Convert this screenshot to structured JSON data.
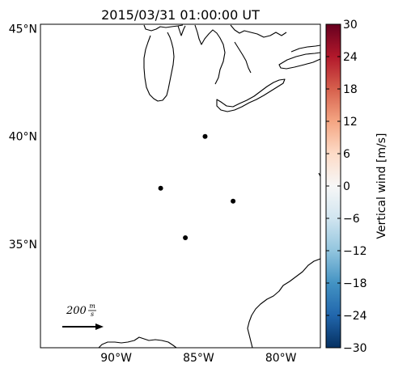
{
  "title": "2015/03/31 01:00:00 UT",
  "map": {
    "lat_labels": [
      {
        "lat": 45,
        "label": "45°N"
      },
      {
        "lat": 40,
        "label": "40°N"
      },
      {
        "lat": 35,
        "label": "35°N"
      }
    ],
    "lon_labels": [
      {
        "lon": -90,
        "label": "90°W"
      },
      {
        "lon": -85,
        "label": "85°W"
      },
      {
        "lon": -80,
        "label": "80°W"
      }
    ],
    "extent": {
      "lon_min": -94.6,
      "lon_max": -77.6,
      "lat_min": 30.2,
      "lat_max": 45.2
    },
    "stations": [
      {
        "lon": -84.6,
        "lat": 40.0
      },
      {
        "lon": -87.3,
        "lat": 37.6
      },
      {
        "lon": -82.9,
        "lat": 37.0
      },
      {
        "lon": -85.8,
        "lat": 35.3
      }
    ],
    "reference_arrow": {
      "value": "200",
      "unit_top": "m",
      "unit_bottom": "s"
    }
  },
  "colorbar": {
    "label": "Vertical wind [m/s]",
    "ticks": [
      "30",
      "24",
      "18",
      "12",
      "6",
      "0",
      "−6",
      "−12",
      "−18",
      "−24",
      "−30"
    ],
    "colors": [
      "#67001f",
      "#b2182b",
      "#d6604d",
      "#f4a582",
      "#fddbc7",
      "#f7f7f7",
      "#d1e5f0",
      "#92c5de",
      "#4393c3",
      "#2166ac",
      "#053061"
    ]
  }
}
